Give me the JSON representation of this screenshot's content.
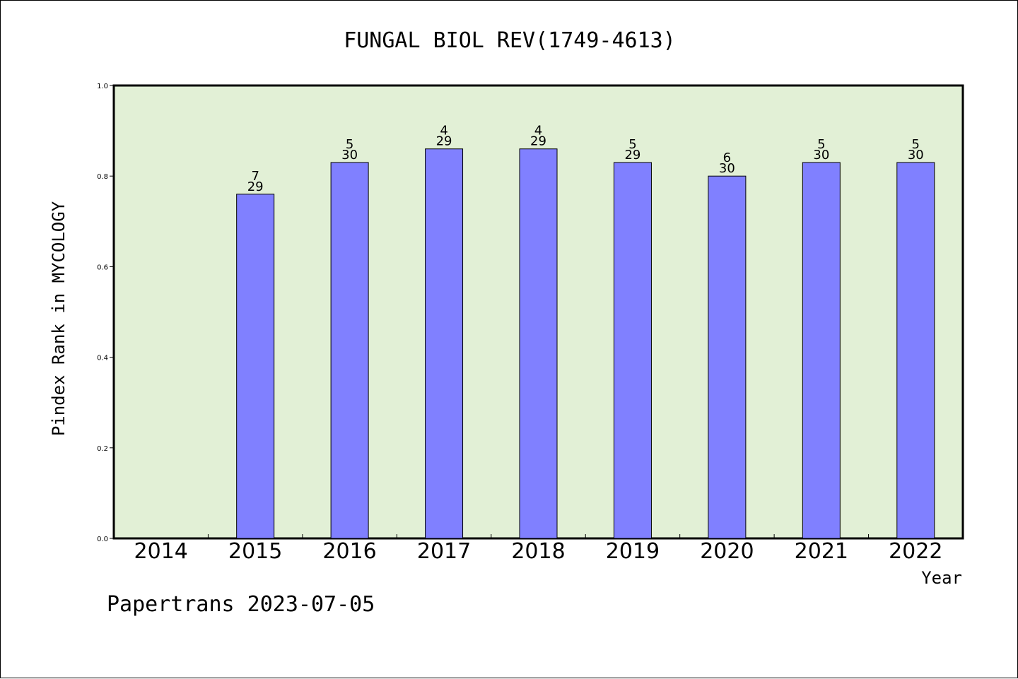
{
  "footer": "Papertrans 2023-07-05",
  "colors": {
    "plot_background": "#e2f0d6",
    "bar_fill": "#8080ff",
    "bar_stroke": "#000000"
  },
  "chart_data": {
    "type": "bar",
    "title": "FUNGAL BIOL REV(1749-4613)",
    "xlabel": "Year",
    "ylabel": "Pindex Rank in MYCOLOGY",
    "ylim": [
      0,
      1.0
    ],
    "yticks": [
      "0.0",
      "0.2",
      "0.4",
      "0.6",
      "0.8",
      "1.0"
    ],
    "grid": false,
    "categories": [
      "2014",
      "2015",
      "2016",
      "2017",
      "2018",
      "2019",
      "2020",
      "2021",
      "2022"
    ],
    "values": [
      null,
      0.76,
      0.83,
      0.86,
      0.86,
      0.83,
      0.8,
      0.83,
      0.83
    ],
    "rank": [
      null,
      "7",
      "5",
      "4",
      "4",
      "5",
      "6",
      "5",
      "5"
    ],
    "total": [
      null,
      "29",
      "30",
      "29",
      "29",
      "29",
      "30",
      "30",
      "30"
    ]
  }
}
